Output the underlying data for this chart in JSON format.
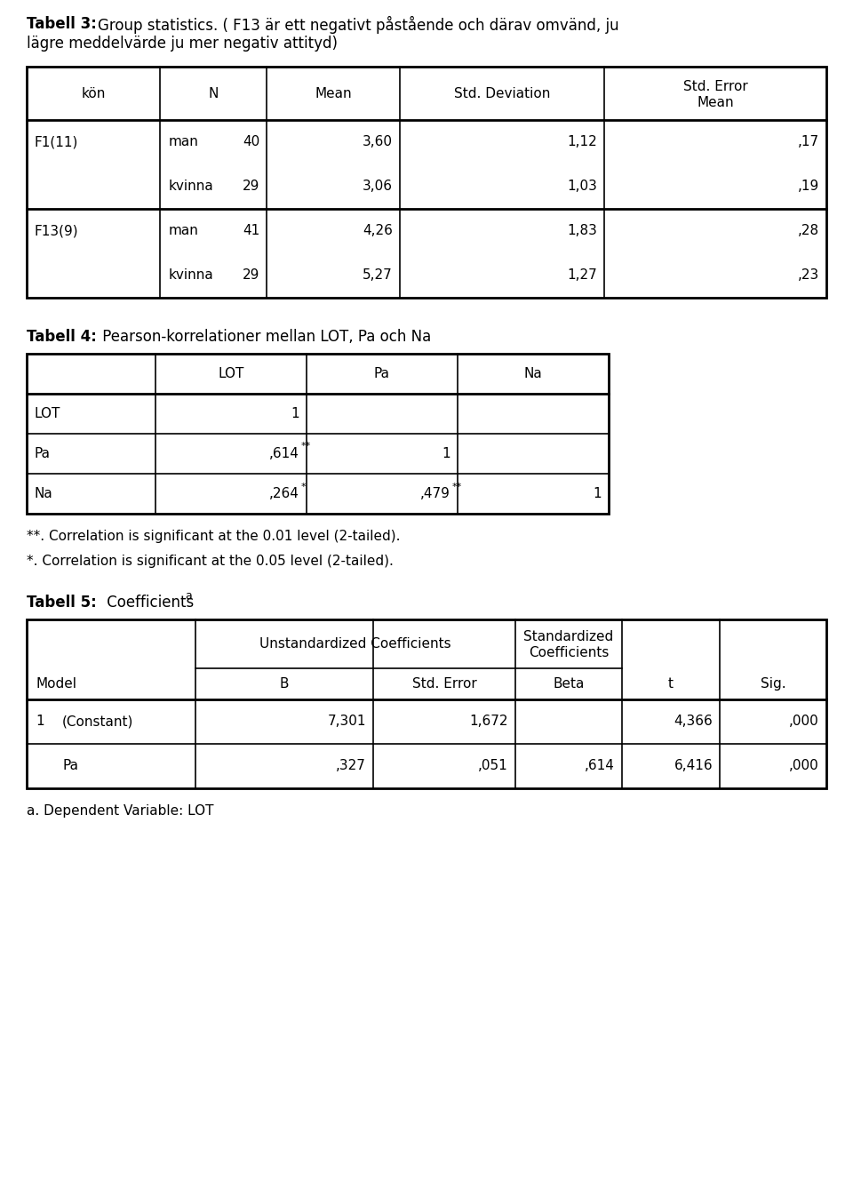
{
  "bg_color": "#ffffff",
  "title3_bold": "Tabell 3:",
  "title3_normal": " Group statistics. ( F13 är ett negativt påstående och därav omvänd, ju lägre meddelvärde ju mer negativ attityd)",
  "table3_headers": [
    "kön",
    "N",
    "Mean",
    "Std. Deviation",
    "Std. Error\nMean"
  ],
  "table3_rows": [
    [
      "F1(11)",
      "man",
      "40",
      "3,60",
      "1,12",
      ",17"
    ],
    [
      "",
      "kvinna",
      "29",
      "3,06",
      "1,03",
      ",19"
    ],
    [
      "F13(9)",
      "man",
      "41",
      "4,26",
      "1,83",
      ",28"
    ],
    [
      "",
      "kvinna",
      "29",
      "5,27",
      "1,27",
      ",23"
    ]
  ],
  "title4_bold": "Tabell 4:",
  "title4_normal": " Pearson-korrelationer mellan LOT, Pa och Na",
  "table4_col_headers": [
    "LOT",
    "Pa",
    "Na"
  ],
  "table4_rows": [
    [
      "LOT",
      "1",
      "",
      ""
    ],
    [
      "Pa",
      ",614**",
      "1",
      ""
    ],
    [
      "Na",
      ",264*",
      ",479**",
      "1"
    ]
  ],
  "footnote4_1": "**. Correlation is significant at the 0.01 level (2-tailed).",
  "footnote4_2": "*. Correlation is significant at the 0.05 level (2-tailed).",
  "title5_bold": "Tabell 5:",
  "title5_superscript": "a",
  "title5_normal": " Coefficients",
  "table5_col_headers_top": [
    "",
    "Unstandardized Coefficients",
    "Standardized\nCoefficients",
    "",
    ""
  ],
  "table5_col_headers_bottom": [
    "Model",
    "B",
    "Std. Error",
    "Beta",
    "t",
    "Sig."
  ],
  "table5_rows": [
    [
      "1",
      "(Constant)",
      "7,301",
      "1,672",
      "",
      "4,366",
      ",000"
    ],
    [
      "",
      "Pa",
      ",327",
      ",051",
      ",614",
      "6,416",
      ",000"
    ]
  ],
  "footnote5": "a. Dependent Variable: LOT"
}
